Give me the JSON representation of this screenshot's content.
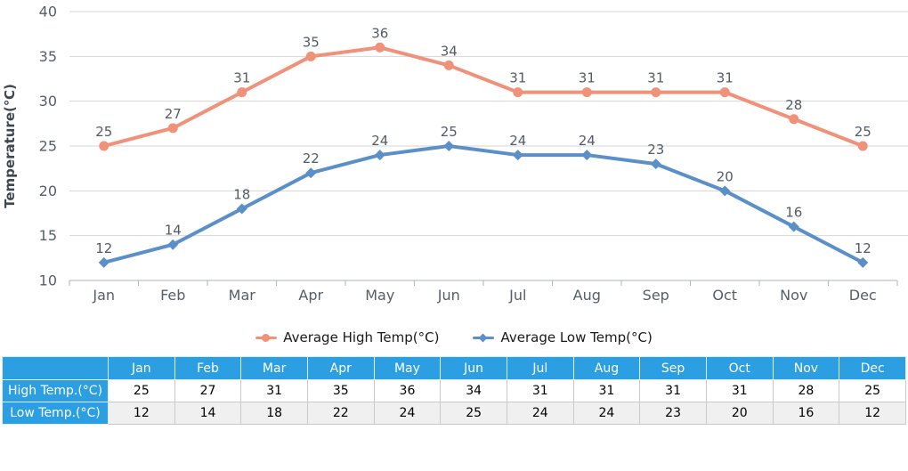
{
  "chart_data": {
    "type": "line",
    "categories": [
      "Jan",
      "Feb",
      "Mar",
      "Apr",
      "May",
      "Jun",
      "Jul",
      "Aug",
      "Sep",
      "Oct",
      "Nov",
      "Dec"
    ],
    "series": [
      {
        "name": "Average High Temp(°C)",
        "values": [
          25,
          27,
          31,
          35,
          36,
          34,
          31,
          31,
          31,
          31,
          28,
          25
        ],
        "color": "#F0917A",
        "marker": "circle"
      },
      {
        "name": "Average Low Temp(°C)",
        "values": [
          12,
          14,
          18,
          22,
          24,
          25,
          24,
          24,
          23,
          20,
          16,
          12
        ],
        "color": "#5B8FC7",
        "marker": "diamond"
      }
    ],
    "title": "",
    "xlabel": "",
    "ylabel": "Temperature(℃)",
    "ylim": [
      10,
      40
    ],
    "yticks": [
      10,
      15,
      20,
      25,
      30,
      35,
      40
    ],
    "grid": true,
    "legend_position": "bottom",
    "data_labels": true
  },
  "legend": {
    "high_label": "Average High Temp(°C)",
    "low_label": "Average Low Temp(°C)"
  },
  "table": {
    "corner": "",
    "columns": [
      "Jan",
      "Feb",
      "Mar",
      "Apr",
      "May",
      "Jun",
      "Jul",
      "Aug",
      "Sep",
      "Oct",
      "Nov",
      "Dec"
    ],
    "rows": [
      {
        "label": "High Temp.(°C)",
        "values": [
          "25",
          "27",
          "31",
          "35",
          "36",
          "34",
          "31",
          "31",
          "31",
          "31",
          "28",
          "25"
        ]
      },
      {
        "label": "Low Temp.(°C)",
        "values": [
          "12",
          "14",
          "18",
          "22",
          "24",
          "25",
          "24",
          "24",
          "23",
          "20",
          "16",
          "12"
        ]
      }
    ],
    "header_bg": "#2B9FE1",
    "alt_row_bg": "#F0F0F0"
  },
  "colors": {
    "high_line": "#F0917A",
    "low_line": "#5B8FC7",
    "grid_line": "#D6D6D6",
    "axis_line": "#AEB6BE",
    "tick_label": "#555F6B",
    "data_label": "#525C66",
    "axis_title": "#3F4852"
  }
}
